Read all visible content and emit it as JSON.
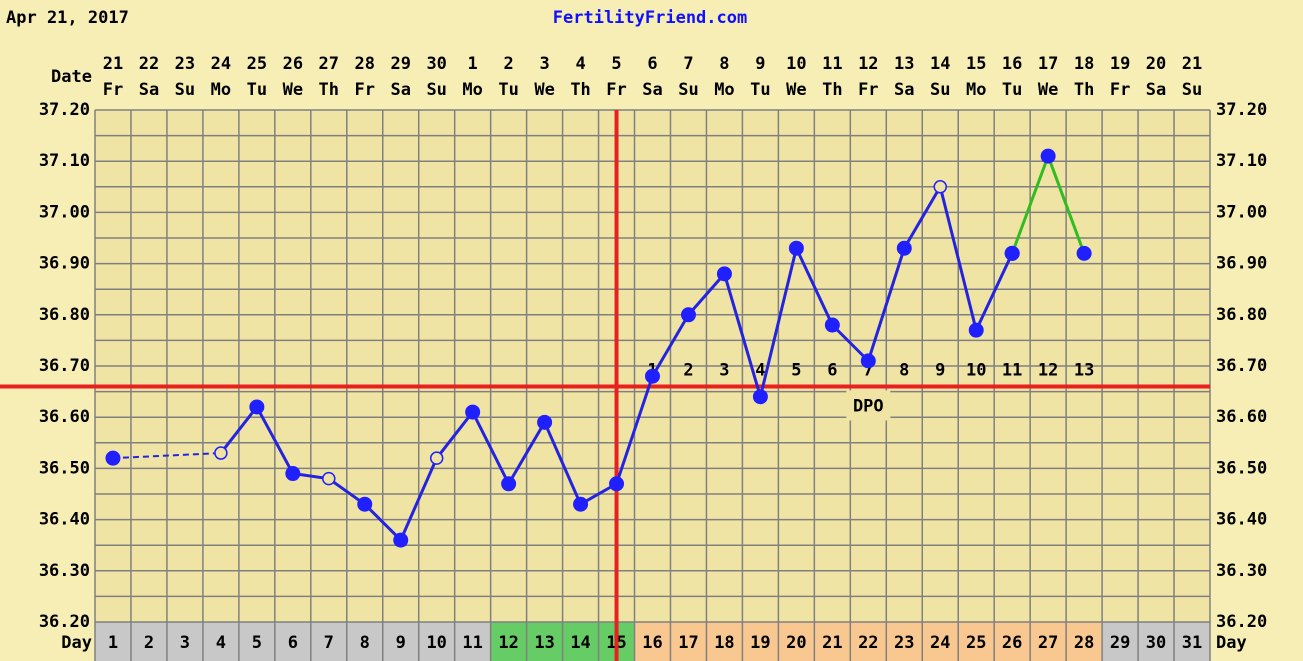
{
  "header": {
    "date": "Apr 21, 2017",
    "site": "FertilityFriend.com"
  },
  "chart_data": {
    "type": "line",
    "date_label": "Date",
    "day_label": "Day",
    "categories": [
      "1",
      "2",
      "3",
      "4",
      "5",
      "6",
      "7",
      "8",
      "9",
      "10",
      "11",
      "12",
      "13",
      "14",
      "15",
      "16",
      "17",
      "18",
      "19",
      "20",
      "21",
      "22",
      "23",
      "24",
      "25",
      "26",
      "27",
      "28",
      "29",
      "30",
      "31"
    ],
    "dates": [
      "21",
      "22",
      "23",
      "24",
      "25",
      "26",
      "27",
      "28",
      "29",
      "30",
      "1",
      "2",
      "3",
      "4",
      "5",
      "6",
      "7",
      "8",
      "9",
      "10",
      "11",
      "12",
      "13",
      "14",
      "15",
      "16",
      "17",
      "18",
      "19",
      "20",
      "21"
    ],
    "weekdays": [
      "Fr",
      "Sa",
      "Su",
      "Mo",
      "Tu",
      "We",
      "Th",
      "Fr",
      "Sa",
      "Su",
      "Mo",
      "Tu",
      "We",
      "Th",
      "Fr",
      "Sa",
      "Su",
      "Mo",
      "Tu",
      "We",
      "Th",
      "Fr",
      "Sa",
      "Su",
      "Mo",
      "Tu",
      "We",
      "Th",
      "Fr",
      "Sa",
      "Su"
    ],
    "day_colors": [
      "#c8c8c8",
      "#c8c8c8",
      "#c8c8c8",
      "#c8c8c8",
      "#c8c8c8",
      "#c8c8c8",
      "#c8c8c8",
      "#c8c8c8",
      "#c8c8c8",
      "#c8c8c8",
      "#c8c8c8",
      "#66cc66",
      "#66cc66",
      "#66cc66",
      "#66cc66",
      "#f8c890",
      "#f8c890",
      "#f8c890",
      "#f8c890",
      "#f8c890",
      "#f8c890",
      "#f8c890",
      "#f8c890",
      "#f8c890",
      "#f8c890",
      "#f8c890",
      "#f8c890",
      "#f8c890",
      "#c8c8c8",
      "#c8c8c8",
      "#c8c8c8"
    ],
    "series": [
      {
        "color": "#2424e0",
        "values": [
          36.52,
          null,
          null,
          36.53,
          36.62,
          36.49,
          36.48,
          36.43,
          36.36,
          36.52,
          36.61,
          36.47,
          36.59,
          36.43,
          36.47,
          36.68,
          36.8,
          36.88,
          36.64,
          36.93,
          36.78,
          36.71,
          36.93,
          37.05,
          36.77,
          36.92,
          null,
          null,
          null,
          null,
          null
        ],
        "open": [
          false,
          false,
          false,
          true,
          false,
          false,
          true,
          false,
          false,
          true,
          false,
          false,
          false,
          false,
          false,
          false,
          false,
          false,
          false,
          false,
          false,
          false,
          false,
          true,
          false,
          false,
          false,
          false,
          false,
          false,
          false
        ]
      },
      {
        "color": "#33bb22",
        "values": [
          null,
          null,
          null,
          null,
          null,
          null,
          null,
          null,
          null,
          null,
          null,
          null,
          null,
          null,
          null,
          null,
          null,
          null,
          null,
          null,
          null,
          null,
          null,
          null,
          null,
          36.92,
          37.11,
          36.92,
          null,
          null,
          null
        ]
      }
    ],
    "marker_color": "#2020ff",
    "coverline": 36.66,
    "coverline_color": "#e82020",
    "ovulation_day": "15",
    "dpo_labels": [
      "1",
      "2",
      "3",
      "4",
      "5",
      "6",
      "7",
      "8",
      "9",
      "10",
      "11",
      "12",
      "13"
    ],
    "dpo_title": "DPO",
    "ylim": [
      36.2,
      37.2
    ],
    "yticks": [
      {
        "value": 36.2,
        "label": "36.20"
      },
      {
        "value": 36.3,
        "label": "36.30"
      },
      {
        "value": 36.4,
        "label": "36.40"
      },
      {
        "value": 36.5,
        "label": "36.50"
      },
      {
        "value": 36.6,
        "label": "36.60"
      },
      {
        "value": 36.7,
        "label": "36.70"
      },
      {
        "value": 36.8,
        "label": "36.80"
      },
      {
        "value": 36.9,
        "label": "36.90"
      },
      {
        "value": 37.0,
        "label": "37.00"
      },
      {
        "value": 37.1,
        "label": "37.10"
      },
      {
        "value": 37.2,
        "label": "37.20"
      }
    ],
    "grid": true
  }
}
